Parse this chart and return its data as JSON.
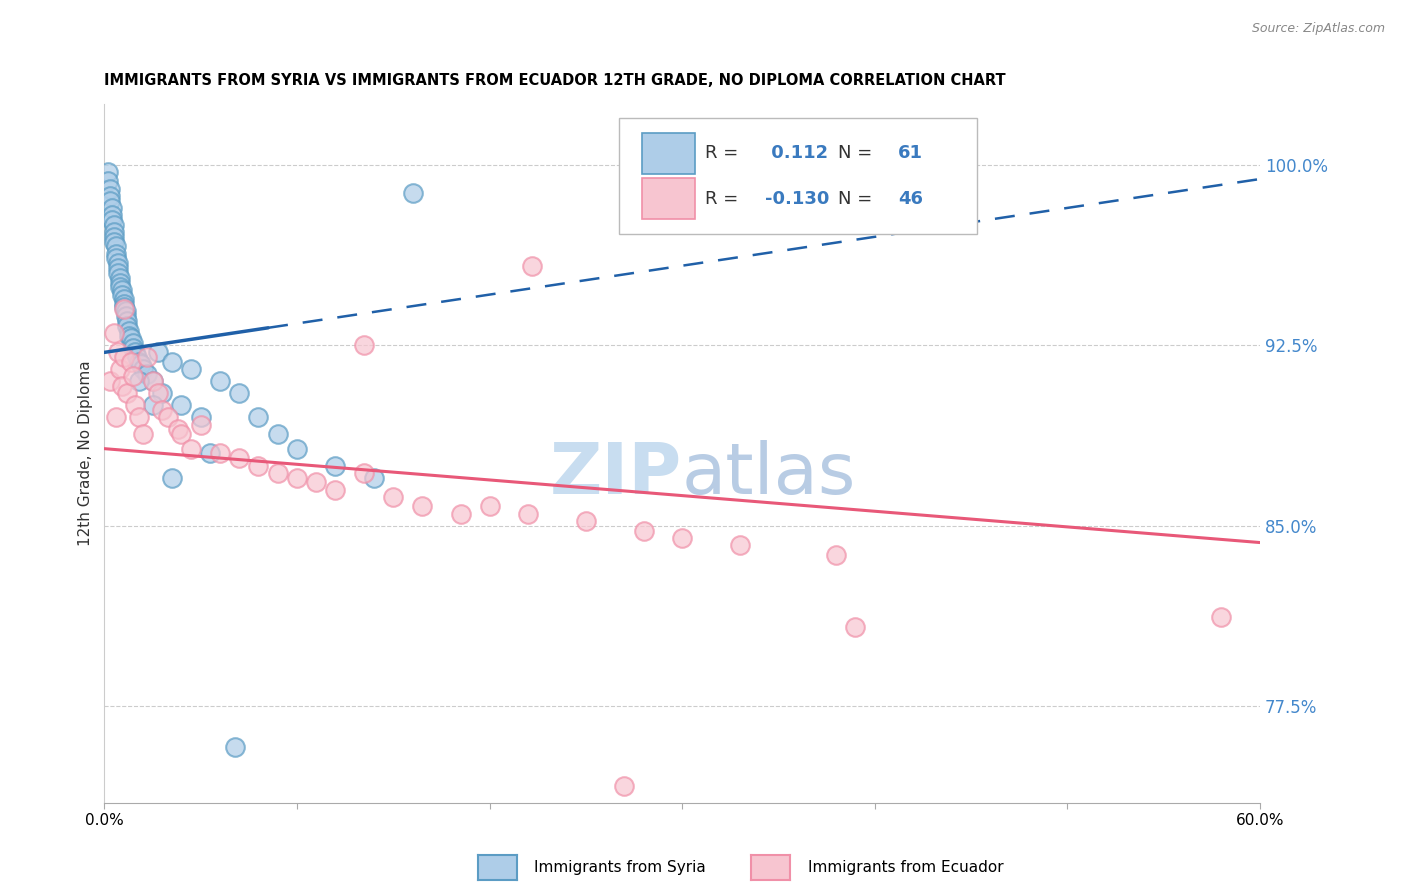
{
  "title": "IMMIGRANTS FROM SYRIA VS IMMIGRANTS FROM ECUADOR 12TH GRADE, NO DIPLOMA CORRELATION CHART",
  "source": "Source: ZipAtlas.com",
  "ylabel": "12th Grade, No Diploma",
  "y_ticks": [
    0.775,
    0.85,
    0.925,
    1.0
  ],
  "y_tick_labels": [
    "77.5%",
    "85.0%",
    "92.5%",
    "100.0%"
  ],
  "xlim": [
    0.0,
    0.6
  ],
  "ylim": [
    0.735,
    1.025
  ],
  "legend_r_syria": " 0.112",
  "legend_n_syria": "61",
  "legend_r_ecuador": "-0.130",
  "legend_n_ecuador": "46",
  "syria_fill_color": "#aecde8",
  "syria_edge_color": "#5b9cc4",
  "ecuador_fill_color": "#f7c5d0",
  "ecuador_edge_color": "#f090a8",
  "syria_line_color": "#2060a8",
  "ecuador_line_color": "#e85878",
  "watermark_zip": "ZIP",
  "watermark_atlas": "atlas",
  "watermark_color": "#c8ddf0",
  "bottom_legend_syria": "Immigrants from Syria",
  "bottom_legend_ecuador": "Immigrants from Ecuador"
}
